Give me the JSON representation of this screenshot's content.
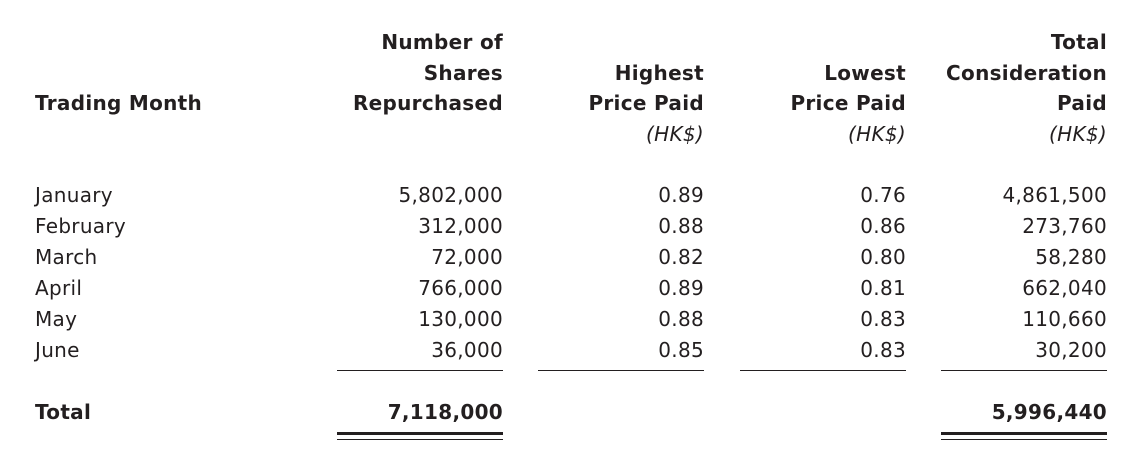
{
  "table": {
    "headers": {
      "trading_month": "Trading Month",
      "shares": [
        "Number of",
        "Shares",
        "Repurchased"
      ],
      "highest": [
        "Highest",
        "Price Paid"
      ],
      "lowest": [
        "Lowest",
        "Price Paid"
      ],
      "total_consideration": [
        "Total",
        "Consideration",
        "Paid"
      ],
      "unit_highest": "(HK$)",
      "unit_lowest": "(HK$)",
      "unit_total": "(HK$)"
    },
    "rows": [
      {
        "month": "January",
        "shares": "5,802,000",
        "highest": "0.89",
        "lowest": "0.76",
        "total": "4,861,500"
      },
      {
        "month": "February",
        "shares": "312,000",
        "highest": "0.88",
        "lowest": "0.86",
        "total": "273,760"
      },
      {
        "month": "March",
        "shares": "72,000",
        "highest": "0.82",
        "lowest": "0.80",
        "total": "58,280"
      },
      {
        "month": "April",
        "shares": "766,000",
        "highest": "0.89",
        "lowest": "0.81",
        "total": "662,040"
      },
      {
        "month": "May",
        "shares": "130,000",
        "highest": "0.88",
        "lowest": "0.83",
        "total": "110,660"
      },
      {
        "month": "June",
        "shares": "36,000",
        "highest": "0.85",
        "lowest": "0.83",
        "total": "30,200"
      }
    ],
    "totals": {
      "label": "Total",
      "shares": "7,118,000",
      "total": "5,996,440"
    }
  }
}
